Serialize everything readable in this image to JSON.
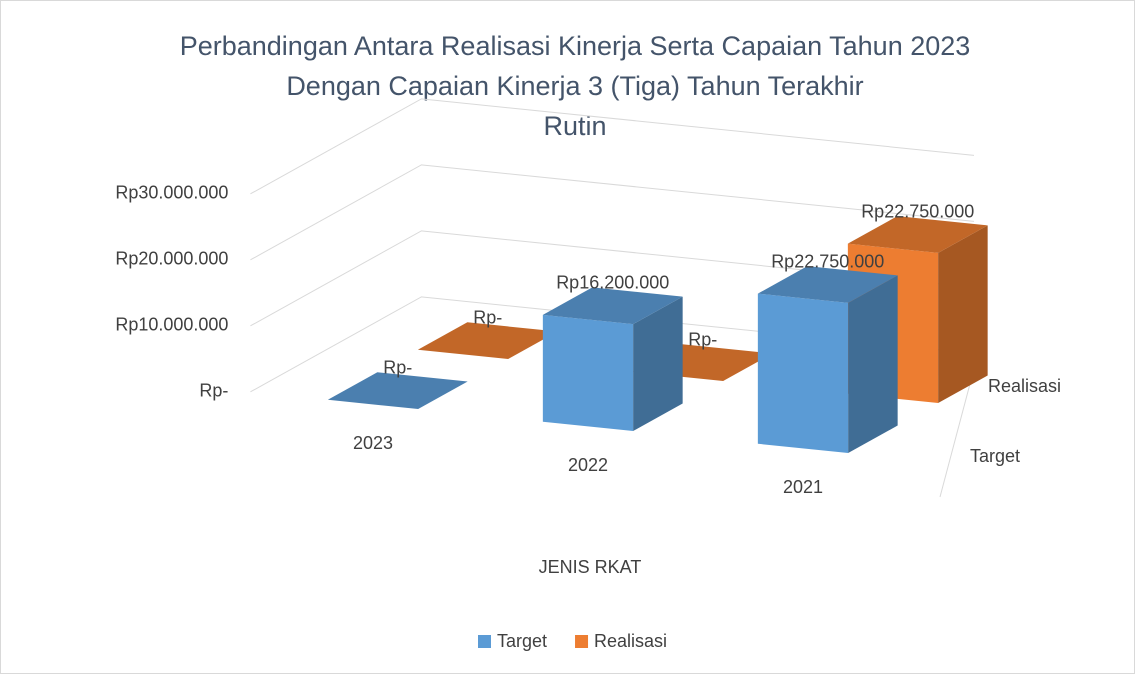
{
  "chart_data": {
    "type": "bar3d",
    "title": [
      "Perbandingan Antara Realisasi Kinerja Serta Capaian Tahun 2023",
      "Dengan Capaian Kinerja 3 (Tiga) Tahun Terakhir",
      "Rutin"
    ],
    "x_label": "JENIS RKAT",
    "categories": [
      "2023",
      "2022",
      "2021"
    ],
    "series": [
      {
        "name": "Target",
        "color": "#5b9bd5",
        "values": [
          0,
          16200000,
          22750000
        ],
        "value_labels": [
          "Rp-",
          "Rp16.200.000",
          "Rp22.750.000"
        ]
      },
      {
        "name": "Realisasi",
        "color": "#ed7d31",
        "values": [
          0,
          0,
          22750000
        ],
        "value_labels": [
          "Rp-",
          "Rp-",
          "Rp22.750.000"
        ]
      }
    ],
    "ylim": [
      0,
      30000000
    ],
    "yticks": [
      {
        "value": 0,
        "label": "Rp-"
      },
      {
        "value": 10000000,
        "label": "Rp10.000.000"
      },
      {
        "value": 20000000,
        "label": "Rp20.000.000"
      },
      {
        "value": 30000000,
        "label": "Rp30.000.000"
      }
    ],
    "grid": true,
    "legend": "bottom"
  }
}
